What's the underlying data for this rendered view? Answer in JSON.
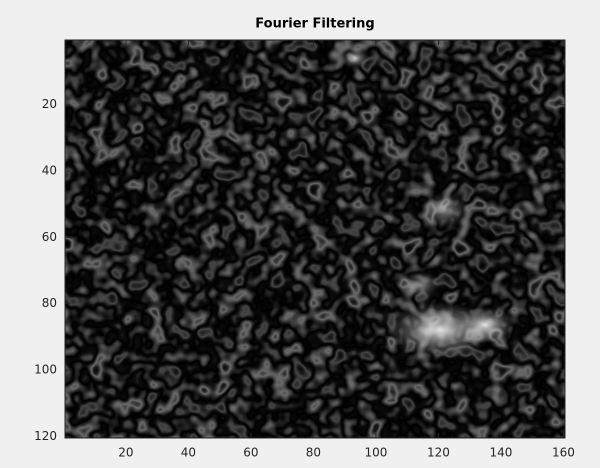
{
  "chart_data": {
    "type": "image",
    "title": "Fourier Filtering",
    "xlim": [
      0.5,
      160.5
    ],
    "ylim": [
      0.5,
      120.5
    ],
    "xticks": [
      20,
      40,
      60,
      80,
      100,
      120,
      140,
      160
    ],
    "yticks": [
      20,
      40,
      60,
      80,
      100,
      120
    ],
    "y_reversed": true
  }
}
